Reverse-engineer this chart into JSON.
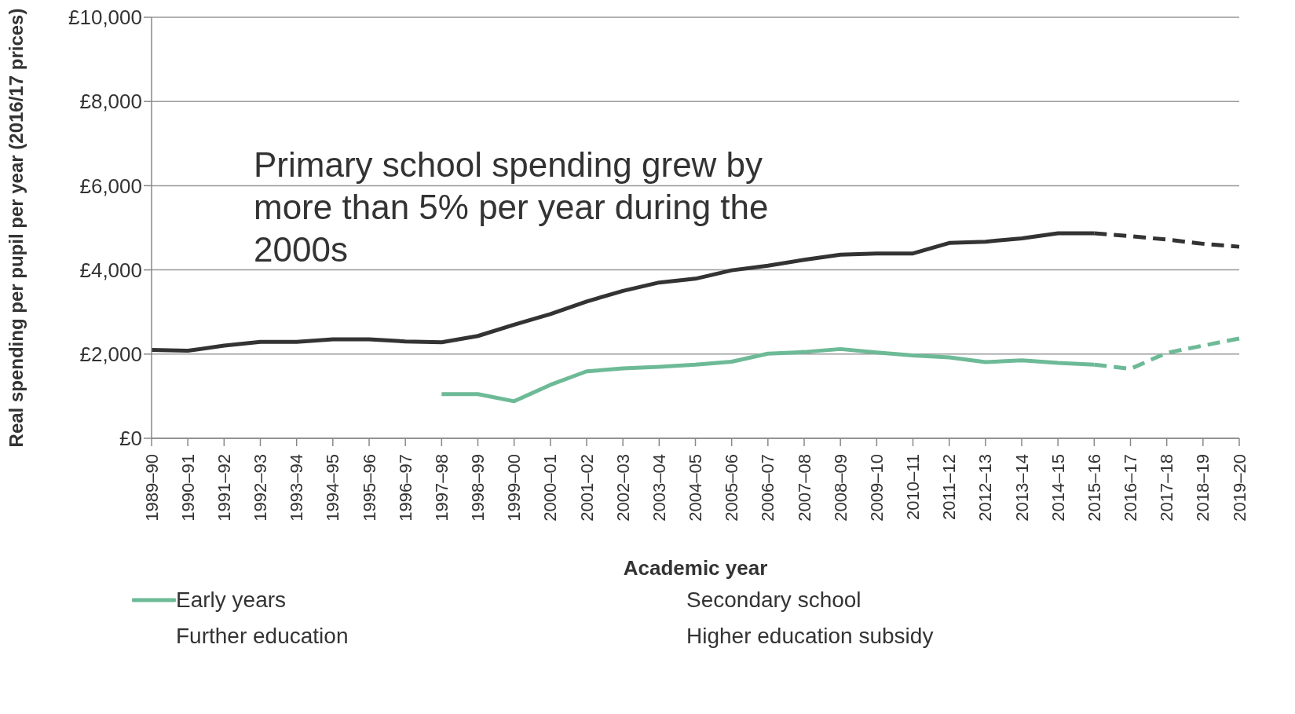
{
  "chart_data": {
    "type": "line",
    "xlabel": "Academic year",
    "ylabel": "Real spending per pupil  per year (2016/17 prices)",
    "categories": [
      "1989–90",
      "1990–91",
      "1991–92",
      "1992–93",
      "1993–94",
      "1994–95",
      "1995–96",
      "1996–97",
      "1997–98",
      "1998–99",
      "1999–00",
      "2000–01",
      "2001–02",
      "2002–03",
      "2003–04",
      "2004–05",
      "2005–06",
      "2006–07",
      "2007–08",
      "2008–09",
      "2009–10",
      "2010–11",
      "2011–12",
      "2012–13",
      "2013–14",
      "2014–15",
      "2015–16",
      "2016–17",
      "2017–18",
      "2018–19",
      "2019–20"
    ],
    "series": [
      {
        "color": "#333333",
        "line_style": "solid",
        "values": [
          2100,
          2080,
          2200,
          2290,
          2290,
          2350,
          2350,
          2300,
          2280,
          2430,
          2700,
          2950,
          3250,
          3500,
          3700,
          3790,
          3990,
          4100,
          4240,
          4360,
          4390,
          4390,
          4640,
          4670,
          4750,
          4870,
          4870,
          null,
          null,
          null,
          null
        ]
      },
      {
        "color": "#333333",
        "line_style": "dashed",
        "values": [
          null,
          null,
          null,
          null,
          null,
          null,
          null,
          null,
          null,
          null,
          null,
          null,
          null,
          null,
          null,
          null,
          null,
          null,
          null,
          null,
          null,
          null,
          null,
          null,
          null,
          null,
          4870,
          4800,
          4720,
          4620,
          4550
        ]
      },
      {
        "name": "Early years",
        "color": "#6dba96",
        "line_style": "solid",
        "values": [
          null,
          null,
          null,
          null,
          null,
          null,
          null,
          null,
          1050,
          1050,
          880,
          1270,
          1590,
          1660,
          1700,
          1750,
          1820,
          2010,
          2050,
          2120,
          2040,
          1970,
          1920,
          1810,
          1850,
          1790,
          1750,
          null,
          null,
          null,
          null
        ]
      },
      {
        "color": "#6dba96",
        "line_style": "dashed",
        "values": [
          null,
          null,
          null,
          null,
          null,
          null,
          null,
          null,
          null,
          null,
          null,
          null,
          null,
          null,
          null,
          null,
          null,
          null,
          null,
          null,
          null,
          null,
          null,
          null,
          null,
          null,
          1750,
          1650,
          2030,
          2200,
          2370
        ]
      }
    ],
    "ylim": [
      0,
      10000
    ],
    "yticks": [
      {
        "value": 0,
        "label": "£0"
      },
      {
        "value": 2000,
        "label": "£2,000"
      },
      {
        "value": 4000,
        "label": "£4,000"
      },
      {
        "value": 6000,
        "label": "£6,000"
      },
      {
        "value": 8000,
        "label": "£8,000"
      },
      {
        "value": 10000,
        "label": "£10,000"
      }
    ],
    "grid": "y",
    "legend": "bottom",
    "marker": "none",
    "annotations": [
      "Primary school spending grew by more than 5% per year during the 2000s",
      "Secondary school",
      "Further education",
      "Higher education subsidy"
    ]
  }
}
